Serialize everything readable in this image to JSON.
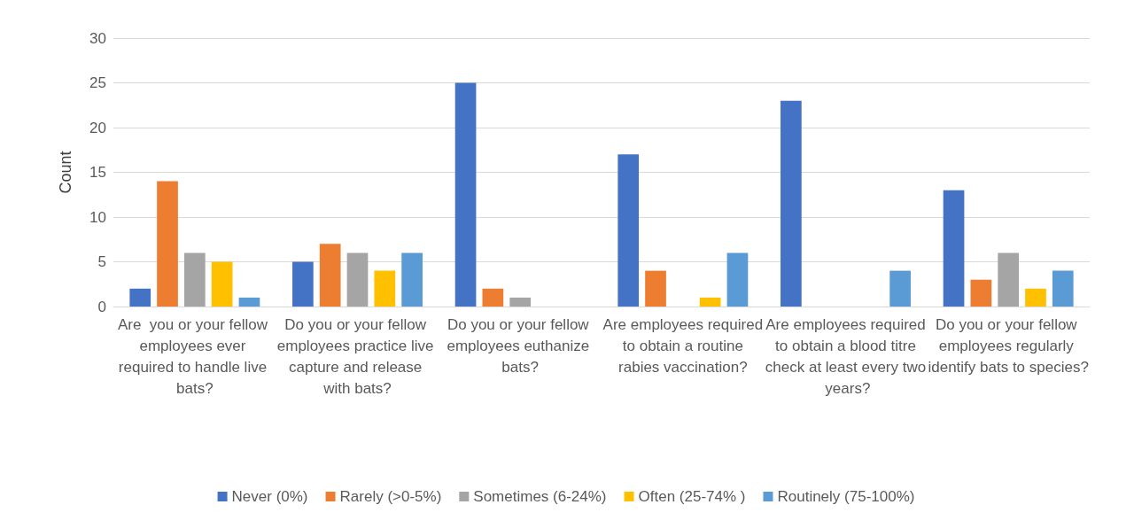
{
  "chart_data": {
    "type": "bar",
    "ylabel": "Count",
    "categories": [
      "Are  you or your fellow employees ever required to handle live bats?",
      "Do you or your fellow employees practice live capture and release with bats?",
      "Do you or your fellow employees euthanize bats?",
      "Are employees required to obtain a routine rabies vaccination?",
      "Are employees required to obtain a blood titre check at least every two years?",
      "Do you or your fellow employees regularly identify bats to species?"
    ],
    "series": [
      {
        "name": "Never (0%)",
        "color": "#4472c4",
        "values": [
          2,
          5,
          25,
          17,
          23,
          13
        ]
      },
      {
        "name": "Rarely (>0-5%)",
        "color": "#ed7d31",
        "values": [
          14,
          7,
          2,
          4,
          0,
          3
        ]
      },
      {
        "name": "Sometimes (6-24%)",
        "color": "#a5a5a5",
        "values": [
          6,
          6,
          1,
          0,
          0,
          6
        ]
      },
      {
        "name": "Often (25-74% )",
        "color": "#ffc000",
        "values": [
          5,
          4,
          0,
          1,
          0,
          2
        ]
      },
      {
        "name": "Routinely (75-100%)",
        "color": "#5b9bd5",
        "values": [
          1,
          6,
          0,
          6,
          4,
          4
        ]
      }
    ],
    "ylim": [
      0,
      30
    ],
    "yticks": [
      0,
      5,
      10,
      15,
      20,
      25,
      30
    ],
    "grid": "y",
    "legend": "bottom"
  }
}
